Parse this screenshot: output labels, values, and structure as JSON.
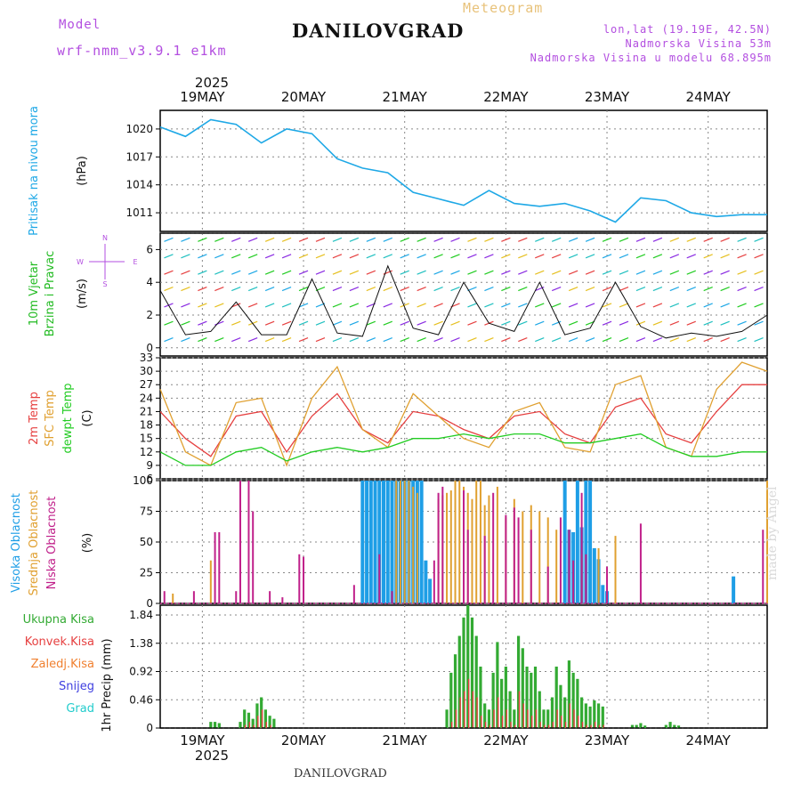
{
  "header": {
    "city": "DANILOVGRAD",
    "subtitle": "Meteogram",
    "model_label": "Model",
    "model_value": "wrf-nmm_v3.9.1 e1km",
    "lonlat": "lon,lat (19.19E, 42.5N)",
    "altitude": "Nadmorska Visina 53m",
    "model_altitude": "Nadmorska Visina u modelu 68.895m"
  },
  "footer": {
    "city": "DANILOVGRAD",
    "credit": "made by Angel"
  },
  "colors": {
    "pressure": "#1ea8e6",
    "wind_label": "#22bb22",
    "temp2m": "#e64040",
    "sfc": "#e0a030",
    "dewpt": "#22cc22",
    "high_cloud": "#1e9ee6",
    "mid_cloud": "#e0a030",
    "low_cloud": "#c0208a",
    "total_precip": "#33aa33",
    "conv_precip": "#e64040",
    "frz_precip": "#f08030",
    "snow": "#4040e0",
    "grad": "#22cccc",
    "purple": "#b34fe0"
  },
  "time_axis": {
    "year": "2025",
    "days": [
      "19MAY",
      "20MAY",
      "21MAY",
      "22MAY",
      "23MAY",
      "24MAY"
    ]
  },
  "chart_data": [
    {
      "type": "line",
      "panel": "pressure",
      "ylabel": "Pritisak na nivou mora",
      "unit": "(hPa)",
      "yticks": [
        1011,
        1014,
        1017,
        1020
      ],
      "ylim": [
        1009,
        1022
      ],
      "x": [
        0,
        6,
        12,
        18,
        24,
        30,
        36,
        42,
        48,
        54,
        60,
        66,
        72,
        78,
        84,
        90,
        96,
        102,
        108,
        114,
        120,
        126,
        132,
        138,
        144
      ],
      "series": [
        {
          "name": "Pritisak na nivou mora",
          "values": [
            1020.2,
            1019.2,
            1021.0,
            1020.5,
            1018.5,
            1020.0,
            1019.5,
            1016.8,
            1015.8,
            1015.3,
            1013.2,
            1012.5,
            1011.8,
            1013.4,
            1012.0,
            1011.7,
            1012.0,
            1011.2,
            1010.0,
            1012.6,
            1012.3,
            1011.0,
            1010.6,
            1010.8,
            1010.8
          ]
        }
      ],
      "grid": true
    },
    {
      "type": "line",
      "panel": "wind",
      "ylabel": "10m Vjetar Brzina i Pravac",
      "unit": "(m/s)",
      "yticks": [
        0,
        2,
        4,
        6
      ],
      "ylim": [
        -0.5,
        7
      ],
      "compass": "N S W E",
      "x": [
        0,
        6,
        12,
        18,
        24,
        30,
        36,
        42,
        48,
        54,
        60,
        66,
        72,
        78,
        84,
        90,
        96,
        102,
        108,
        114,
        120,
        126,
        132,
        138,
        144
      ],
      "series": [
        {
          "name": "10m Vjetar",
          "values": [
            3.5,
            0.8,
            1.0,
            2.8,
            0.8,
            0.8,
            4.2,
            0.9,
            0.7,
            5.0,
            1.2,
            0.8,
            4.0,
            1.5,
            1.0,
            4.0,
            0.8,
            1.2,
            4.0,
            1.3,
            0.6,
            0.9,
            0.7,
            1.0,
            2.0
          ]
        }
      ],
      "grid": true
    },
    {
      "type": "line",
      "panel": "temperature",
      "ylabel": "2m Temp / SFC Temp / dewpt Temp",
      "unit": "(C)",
      "yticks": [
        6,
        9,
        12,
        15,
        18,
        21,
        24,
        27,
        30,
        33
      ],
      "ylim": [
        6,
        33
      ],
      "x": [
        0,
        6,
        12,
        18,
        24,
        30,
        36,
        42,
        48,
        54,
        60,
        66,
        72,
        78,
        84,
        90,
        96,
        102,
        108,
        114,
        120,
        126,
        132,
        138,
        144
      ],
      "series": [
        {
          "name": "2m Temp",
          "values": [
            21,
            15,
            11,
            20,
            21,
            12,
            20,
            25,
            17,
            14,
            21,
            20,
            17,
            15,
            20,
            21,
            16,
            14,
            22,
            24,
            16,
            14,
            21,
            27,
            27
          ]
        },
        {
          "name": "SFC Temp",
          "values": [
            26,
            12,
            9,
            23,
            24,
            9,
            24,
            31,
            17,
            13,
            25,
            20,
            15,
            13,
            21,
            23,
            13,
            12,
            27,
            29,
            13,
            11,
            26,
            32,
            30
          ]
        },
        {
          "name": "dewpt Temp",
          "values": [
            12,
            9,
            9,
            12,
            13,
            10,
            12,
            13,
            12,
            13,
            15,
            15,
            16,
            15,
            16,
            16,
            14,
            14,
            15,
            16,
            13,
            11,
            11,
            12,
            12
          ]
        }
      ],
      "grid": true
    },
    {
      "type": "bar",
      "panel": "clouds",
      "ylabel": "Visoka Oblacnost / Srednja Oblacnost / Niska Oblacnost",
      "unit": "(%)",
      "yticks": [
        0,
        25,
        50,
        75,
        100
      ],
      "ylim": [
        0,
        100
      ],
      "series": [
        {
          "name": "Visoka Oblacnost",
          "x": [
            48,
            49,
            50,
            51,
            52,
            53,
            54,
            55,
            56,
            57,
            58,
            59,
            60,
            61,
            62,
            63,
            64,
            96,
            97,
            98,
            99,
            100,
            101,
            102,
            103,
            104,
            105,
            106,
            136
          ],
          "values": [
            100,
            100,
            100,
            100,
            100,
            100,
            100,
            100,
            100,
            100,
            100,
            100,
            100,
            100,
            100,
            35,
            20,
            100,
            60,
            58,
            100,
            62,
            100,
            100,
            45,
            36,
            15,
            10,
            22
          ]
        },
        {
          "name": "Srednja Oblacnost",
          "x": [
            3,
            12,
            56,
            57,
            58,
            59,
            60,
            61,
            66,
            67,
            68,
            69,
            70,
            71,
            72,
            73,
            74,
            75,
            76,
            77,
            78,
            80,
            82,
            84,
            86,
            88,
            90,
            92,
            94,
            100,
            104,
            108,
            144
          ],
          "values": [
            8,
            35,
            100,
            100,
            100,
            100,
            95,
            90,
            85,
            88,
            90,
            92,
            100,
            100,
            95,
            90,
            85,
            100,
            100,
            80,
            88,
            95,
            70,
            85,
            75,
            80,
            75,
            70,
            60,
            40,
            45,
            55,
            100
          ]
        },
        {
          "name": "Niska Oblacnost",
          "x": [
            1,
            8,
            13,
            14,
            18,
            19,
            21,
            22,
            26,
            29,
            33,
            34,
            46,
            52,
            55,
            65,
            66,
            67,
            72,
            73,
            77,
            79,
            82,
            84,
            85,
            88,
            92,
            95,
            97,
            98,
            100,
            101,
            106,
            114,
            143
          ],
          "values": [
            10,
            10,
            58,
            58,
            10,
            100,
            100,
            75,
            10,
            5,
            40,
            38,
            15,
            40,
            10,
            35,
            90,
            95,
            92,
            60,
            55,
            90,
            72,
            78,
            70,
            60,
            30,
            70,
            60,
            35,
            90,
            40,
            30,
            65,
            60
          ]
        }
      ],
      "grid": true
    },
    {
      "type": "bar",
      "panel": "precipitation",
      "ylabel": "1hr Precip",
      "unit": "(mm)",
      "yticks": [
        0,
        0.46,
        0.92,
        1.38,
        1.84
      ],
      "ylim": [
        0,
        2.0
      ],
      "legend": [
        "Ukupna Kisa",
        "Konvek.Kisa",
        "Zaledj.Kisa",
        "Snijeg",
        "Grad"
      ],
      "x": [
        12,
        13,
        14,
        19,
        20,
        21,
        22,
        23,
        24,
        25,
        26,
        27,
        68,
        69,
        70,
        71,
        72,
        73,
        74,
        75,
        76,
        77,
        78,
        79,
        80,
        81,
        82,
        83,
        84,
        85,
        86,
        87,
        88,
        89,
        90,
        91,
        92,
        93,
        94,
        95,
        96,
        97,
        98,
        99,
        100,
        101,
        102,
        103,
        104,
        105,
        112,
        113,
        114,
        115,
        120,
        121,
        122,
        123
      ],
      "series": [
        {
          "name": "Ukupna Kisa",
          "values": [
            0.1,
            0.1,
            0.08,
            0.1,
            0.3,
            0.25,
            0.15,
            0.4,
            0.5,
            0.3,
            0.2,
            0.15,
            0.3,
            0.9,
            1.2,
            1.5,
            1.8,
            2.0,
            1.8,
            1.5,
            1.0,
            0.4,
            0.3,
            0.9,
            1.4,
            0.8,
            1.0,
            0.6,
            0.3,
            1.5,
            1.3,
            1.0,
            0.9,
            1.0,
            0.6,
            0.3,
            0.3,
            0.5,
            1.0,
            0.7,
            0.5,
            1.1,
            0.9,
            0.8,
            0.5,
            0.4,
            0.35,
            0.45,
            0.4,
            0.35,
            0.05,
            0.05,
            0.08,
            0.04,
            0.05,
            0.1,
            0.05,
            0.04
          ]
        },
        {
          "name": "Konvek.Kisa",
          "values": [
            0,
            0,
            0,
            0,
            0.05,
            0.1,
            0.05,
            0.2,
            0.3,
            0.1,
            0.05,
            0,
            0,
            0.1,
            0.3,
            0.5,
            0.6,
            0.8,
            0.6,
            0.5,
            0.2,
            0.1,
            0.05,
            0.3,
            0.5,
            0.2,
            0.3,
            0.1,
            0.05,
            0.6,
            0.4,
            0.3,
            0.2,
            0.3,
            0.1,
            0.05,
            0.05,
            0.1,
            0.3,
            0.2,
            0.1,
            0.4,
            0.3,
            0.2,
            0.1,
            0.05,
            0.05,
            0.1,
            0.05,
            0.05,
            0,
            0,
            0,
            0,
            0,
            0,
            0,
            0
          ]
        }
      ],
      "grid": true
    }
  ]
}
